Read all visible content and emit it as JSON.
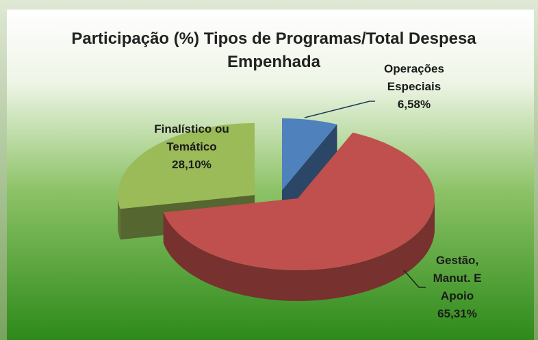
{
  "chart_data": {
    "type": "pie3d",
    "title": "Participação (%) Tipos de Programas/Total Despesa Empenhada",
    "categories": [
      "Operações Especiais",
      "Gestão, Manut. E Apoio",
      "Finalístico ou Temático"
    ],
    "values": [
      6.58,
      65.31,
      28.1
    ],
    "value_labels": [
      "6,58%",
      "65,31%",
      "28,10%"
    ],
    "colors": [
      "#4f81bd",
      "#c0504d",
      "#9bbb59"
    ]
  }
}
